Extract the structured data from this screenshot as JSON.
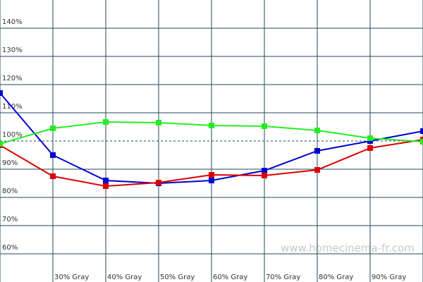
{
  "chart_data": {
    "type": "line",
    "categories": [
      null,
      "30% Gray",
      "40% Gray",
      "50% Gray",
      "60% Gray",
      "70% Gray",
      "80% Gray",
      "90% Gray",
      null
    ],
    "series": [
      {
        "color": "#0000cc",
        "values": [
          117,
          95,
          86,
          85,
          86,
          89.5,
          96.5,
          100,
          103.5
        ]
      },
      {
        "color": "#dd0000",
        "values": [
          98.5,
          87.5,
          84,
          85.25,
          88,
          87.75,
          89.75,
          97.5,
          100.5
        ]
      },
      {
        "color": "#22ee22",
        "values": [
          99,
          104.5,
          106.75,
          106.5,
          105.5,
          105.25,
          103.75,
          101,
          99.75
        ]
      }
    ],
    "ylim": [
      50,
      150
    ],
    "yticks": [
      {
        "value": 60,
        "label": "60%"
      },
      {
        "value": 70,
        "label": "70%"
      },
      {
        "value": 80,
        "label": "80%"
      },
      {
        "value": 90,
        "label": "90%"
      },
      {
        "value": 100,
        "label": "100%"
      },
      {
        "value": 110,
        "label": "110%"
      },
      {
        "value": 120,
        "label": "120%"
      },
      {
        "value": 130,
        "label": "130%"
      },
      {
        "value": 140,
        "label": "140%"
      }
    ],
    "reference": 100,
    "grid": true,
    "watermark": "www.homecinema-fr.com"
  }
}
